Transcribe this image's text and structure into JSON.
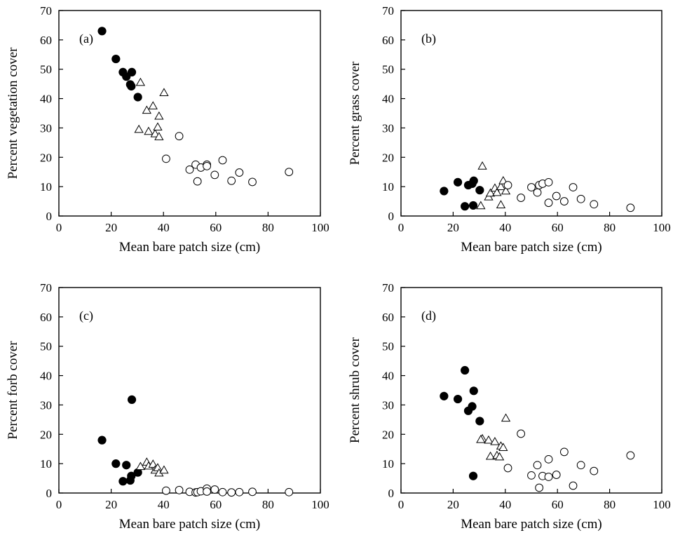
{
  "chart_data": [
    {
      "type": "scatter",
      "panel_label": "(a)",
      "xlabel": "Mean bare patch size (cm)",
      "ylabel": "Percent vegetation cover",
      "xlim": [
        0,
        100
      ],
      "ylim": [
        0,
        70
      ],
      "xticks": [
        "0",
        "20",
        "40",
        "60",
        "80",
        "100"
      ],
      "yticks": [
        "0",
        "10",
        "20",
        "30",
        "40",
        "50",
        "60",
        "70"
      ],
      "grid": false,
      "series": [
        {
          "marker": "filled-circle",
          "points": [
            [
              16.5,
              63
            ],
            [
              21.8,
              53.5
            ],
            [
              24.5,
              49
            ],
            [
              25.8,
              47.5
            ],
            [
              27.3,
              44.8
            ],
            [
              27.9,
              49
            ],
            [
              27.7,
              44.2
            ],
            [
              30.2,
              40.5
            ]
          ]
        },
        {
          "marker": "open-triangle",
          "points": [
            [
              31.2,
              45.5
            ],
            [
              40.2,
              42
            ],
            [
              30.6,
              29.5
            ],
            [
              33.6,
              36
            ],
            [
              34.3,
              28.8
            ],
            [
              36.0,
              37.5
            ],
            [
              36.8,
              28
            ],
            [
              37.8,
              30.3
            ],
            [
              38.3,
              34
            ],
            [
              38.3,
              27
            ]
          ]
        },
        {
          "marker": "open-circle",
          "points": [
            [
              41,
              19.5
            ],
            [
              46,
              27.2
            ],
            [
              50,
              15.8
            ],
            [
              52.3,
              17.5
            ],
            [
              53,
              11.8
            ],
            [
              54.3,
              16.5
            ],
            [
              56.6,
              17.5
            ],
            [
              56.6,
              17
            ],
            [
              59.6,
              14
            ],
            [
              62.6,
              19
            ],
            [
              66,
              12
            ],
            [
              69,
              14.8
            ],
            [
              74,
              11.6
            ],
            [
              88,
              15
            ]
          ]
        }
      ]
    },
    {
      "type": "scatter",
      "panel_label": "(b)",
      "xlabel": "Mean bare patch size (cm)",
      "ylabel": "Percent grass cover",
      "xlim": [
        0,
        100
      ],
      "ylim": [
        0,
        70
      ],
      "xticks": [
        "0",
        "20",
        "40",
        "60",
        "80",
        "100"
      ],
      "yticks": [
        "0",
        "10",
        "20",
        "30",
        "40",
        "50",
        "60",
        "70"
      ],
      "grid": false,
      "series": [
        {
          "marker": "filled-circle",
          "points": [
            [
              16.5,
              8.5
            ],
            [
              21.8,
              11.5
            ],
            [
              24.5,
              3.3
            ],
            [
              25.8,
              10.5
            ],
            [
              27.3,
              11
            ],
            [
              27.9,
              12
            ],
            [
              27.7,
              3.6
            ],
            [
              30.2,
              8.8
            ]
          ]
        },
        {
          "marker": "open-triangle",
          "points": [
            [
              31.2,
              17
            ],
            [
              30.6,
              3.5
            ],
            [
              33.6,
              6.5
            ],
            [
              34.3,
              7.8
            ],
            [
              36.0,
              9.5
            ],
            [
              36.8,
              8
            ],
            [
              38.3,
              10
            ],
            [
              38.3,
              3.8
            ],
            [
              39.2,
              12
            ],
            [
              40.2,
              8.5
            ]
          ]
        },
        {
          "marker": "open-circle",
          "points": [
            [
              41,
              10.5
            ],
            [
              46,
              6.2
            ],
            [
              50,
              9.8
            ],
            [
              52.3,
              8
            ],
            [
              53,
              10.5
            ],
            [
              54.3,
              11
            ],
            [
              56.6,
              11.5
            ],
            [
              56.6,
              4.5
            ],
            [
              59.6,
              6.8
            ],
            [
              62.6,
              5
            ],
            [
              66,
              9.8
            ],
            [
              69,
              5.8
            ],
            [
              74,
              4
            ],
            [
              88,
              2.8
            ]
          ]
        }
      ]
    },
    {
      "type": "scatter",
      "panel_label": "(c)",
      "xlabel": "Mean bare patch size (cm)",
      "ylabel": "Percent forb cover",
      "xlim": [
        0,
        100
      ],
      "ylim": [
        0,
        70
      ],
      "xticks": [
        "0",
        "20",
        "40",
        "60",
        "80",
        "100"
      ],
      "yticks": [
        "0",
        "10",
        "20",
        "30",
        "40",
        "50",
        "60",
        "70"
      ],
      "grid": false,
      "series": [
        {
          "marker": "filled-circle",
          "points": [
            [
              16.5,
              18
            ],
            [
              21.8,
              10
            ],
            [
              24.5,
              4
            ],
            [
              25.8,
              9.5
            ],
            [
              27.3,
              4.3
            ],
            [
              27.9,
              31.8
            ],
            [
              27.7,
              5.8
            ],
            [
              30.2,
              7
            ]
          ]
        },
        {
          "marker": "open-triangle",
          "points": [
            [
              31.2,
              9
            ],
            [
              33.6,
              10.5
            ],
            [
              34.3,
              9.2
            ],
            [
              36.0,
              9.8
            ],
            [
              36.8,
              7.8
            ],
            [
              37.8,
              8.6
            ],
            [
              38.3,
              6.8
            ],
            [
              40.2,
              7.8
            ]
          ]
        },
        {
          "marker": "open-circle",
          "points": [
            [
              41,
              0.8
            ],
            [
              46,
              1
            ],
            [
              50,
              0.4
            ],
            [
              52.3,
              0.2
            ],
            [
              53,
              0.3
            ],
            [
              54.3,
              0.6
            ],
            [
              56.6,
              1.5
            ],
            [
              56.6,
              0.5
            ],
            [
              59.6,
              1.2
            ],
            [
              62.6,
              0.3
            ],
            [
              66,
              0.2
            ],
            [
              69,
              0.3
            ],
            [
              74,
              0.4
            ],
            [
              88,
              0.3
            ]
          ]
        }
      ]
    },
    {
      "type": "scatter",
      "panel_label": "(d)",
      "xlabel": "Mean bare patch size (cm)",
      "ylabel": "Percent shrub cover",
      "xlim": [
        0,
        100
      ],
      "ylim": [
        0,
        70
      ],
      "xticks": [
        "0",
        "20",
        "40",
        "60",
        "80",
        "100"
      ],
      "yticks": [
        "0",
        "10",
        "20",
        "30",
        "40",
        "50",
        "60",
        "70"
      ],
      "grid": false,
      "series": [
        {
          "marker": "filled-circle",
          "points": [
            [
              16.5,
              33
            ],
            [
              21.8,
              32
            ],
            [
              24.5,
              41.8
            ],
            [
              25.8,
              28
            ],
            [
              27.3,
              29.5
            ],
            [
              27.9,
              34.8
            ],
            [
              27.7,
              5.8
            ],
            [
              30.2,
              24.5
            ]
          ]
        },
        {
          "marker": "open-triangle",
          "points": [
            [
              31.2,
              18.5
            ],
            [
              30.6,
              18.2
            ],
            [
              33.6,
              18
            ],
            [
              34.3,
              12.5
            ],
            [
              36.0,
              17.5
            ],
            [
              36.8,
              12.8
            ],
            [
              37.8,
              12.3
            ],
            [
              38.3,
              16
            ],
            [
              39.2,
              15.5
            ],
            [
              40.2,
              25.5
            ]
          ]
        },
        {
          "marker": "open-circle",
          "points": [
            [
              41,
              8.5
            ],
            [
              46,
              20.2
            ],
            [
              50,
              6
            ],
            [
              52.3,
              9.5
            ],
            [
              53,
              1.8
            ],
            [
              54.3,
              5.8
            ],
            [
              56.6,
              11.5
            ],
            [
              56.6,
              5.5
            ],
            [
              59.6,
              6.2
            ],
            [
              62.6,
              14
            ],
            [
              66,
              2.5
            ],
            [
              69,
              9.5
            ],
            [
              74,
              7.5
            ],
            [
              88,
              12.8
            ]
          ]
        }
      ]
    }
  ]
}
